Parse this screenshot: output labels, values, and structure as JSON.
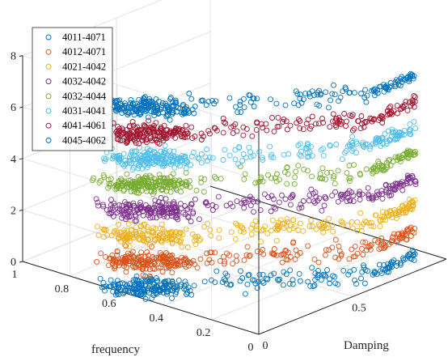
{
  "chart_data": {
    "type": "scatter3d",
    "title": "",
    "xlabel": "Damping",
    "ylabel": "frequency",
    "zlabel": "",
    "xlim": [
      0,
      1
    ],
    "ylim": [
      0,
      1
    ],
    "zlim": [
      0,
      8
    ],
    "x_ticks": [
      "0",
      "0.5"
    ],
    "y_ticks": [
      "0",
      "0.2",
      "0.4",
      "0.6",
      "0.8",
      "1"
    ],
    "z_ticks": [
      "0",
      "2",
      "4",
      "6",
      "8"
    ],
    "grid": true,
    "legend_position": "top-left",
    "marker": "open-circle",
    "series": [
      {
        "name": "4011-4071",
        "color": "#0072BD",
        "z": 0.0
      },
      {
        "name": "4012-4071",
        "color": "#D95319",
        "z": 1.0
      },
      {
        "name": "4021-4042",
        "color": "#EDB120",
        "z": 2.0
      },
      {
        "name": "4032-4042",
        "color": "#7E2F8E",
        "z": 3.0
      },
      {
        "name": "4032-4044",
        "color": "#77AC30",
        "z": 4.0
      },
      {
        "name": "4031-4041",
        "color": "#4DBEEE",
        "z": 5.0
      },
      {
        "name": "4041-4061",
        "color": "#A2142F",
        "z": 6.0
      },
      {
        "name": "4045-4062",
        "color": "#0072BD",
        "z": 7.0
      }
    ]
  }
}
